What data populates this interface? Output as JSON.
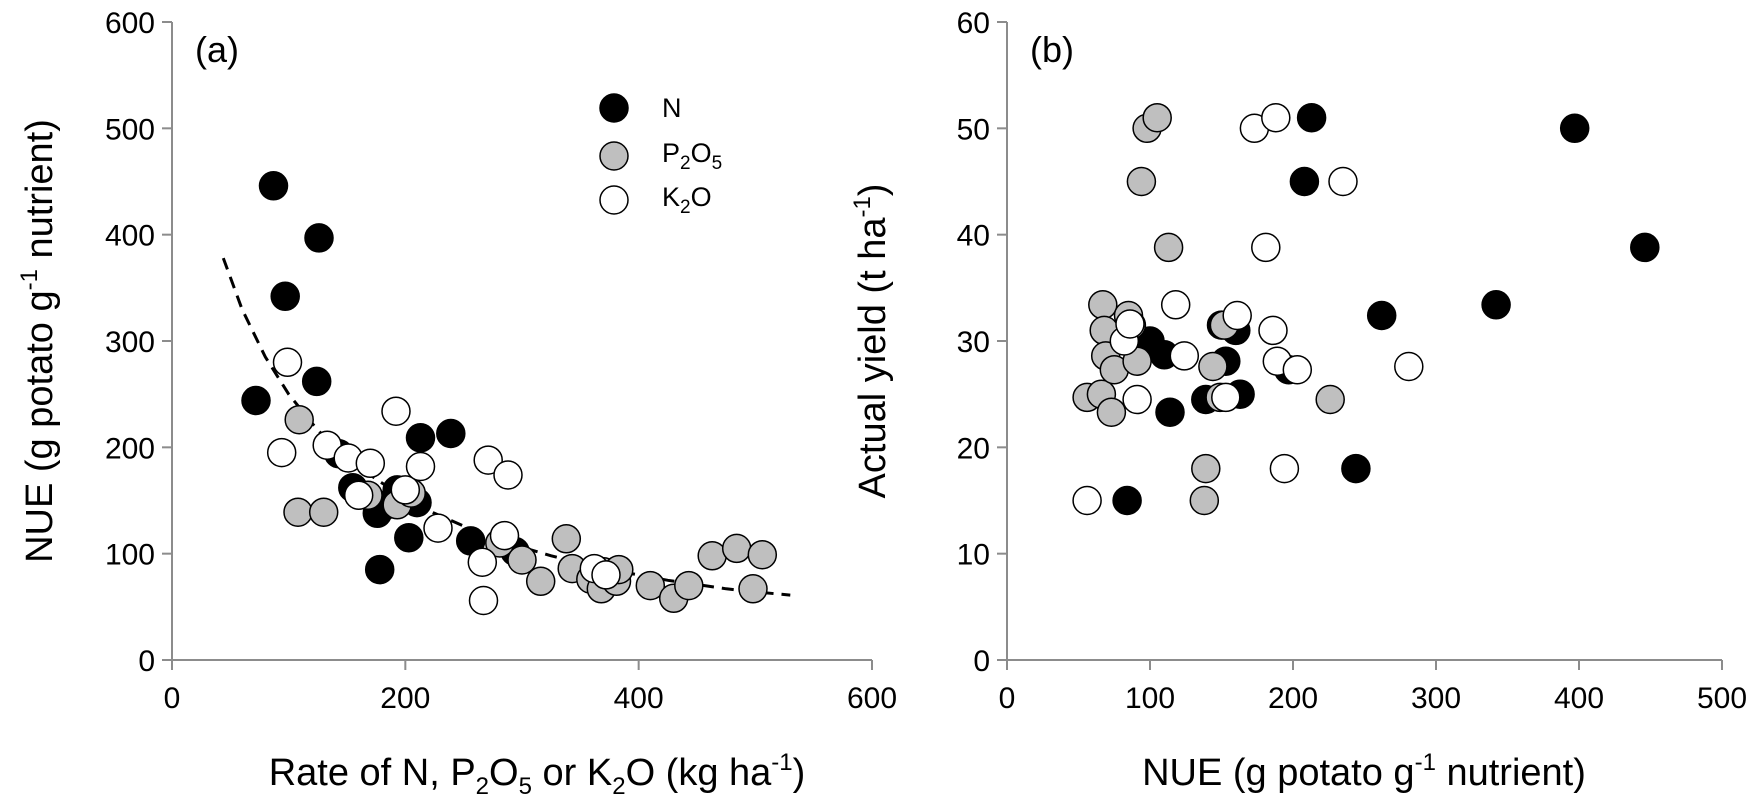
{
  "chart_data": [
    {
      "type": "scatter",
      "panel_label": "(a)",
      "xlabel": {
        "pre": "Rate of N, P",
        "sub1": "2",
        "mid1": "O",
        "sub2": "5",
        "mid2": " or K",
        "sub3": "2",
        "mid3": "O (kg ha",
        "sup": "-1",
        "post": ")"
      },
      "ylabel": {
        "pre": "NUE (g potato g",
        "sup": "-1",
        "post": " nutrient)"
      },
      "xlim": [
        0,
        600
      ],
      "ylim": [
        0,
        600
      ],
      "xticks": [
        "0",
        "200",
        "400",
        "600"
      ],
      "yticks": [
        "0",
        "100",
        "200",
        "300",
        "400",
        "500",
        "600"
      ],
      "legend_position": "top-right",
      "legend": [
        {
          "key": "N",
          "parts": {
            "pre": "N",
            "sub": "",
            "mid": "",
            "sub2": "",
            "post": ""
          },
          "fill": "#000000"
        },
        {
          "key": "P2O5",
          "parts": {
            "pre": "P",
            "sub": "2",
            "mid": "O",
            "sub2": "5",
            "post": ""
          },
          "fill": "#bfbfbf"
        },
        {
          "key": "K2O",
          "parts": {
            "pre": "K",
            "sub": "2",
            "mid": "O",
            "sub2": "",
            "post": ""
          },
          "fill": "#ffffff"
        }
      ],
      "series": [
        {
          "key": "N",
          "fill": "#000000",
          "points": [
            [
              72,
              244
            ],
            [
              87,
              446
            ],
            [
              97,
              342
            ],
            [
              124,
              262
            ],
            [
              126,
              397
            ],
            [
              143,
              194
            ],
            [
              155,
              162
            ],
            [
              176,
              138
            ],
            [
              178,
              85
            ],
            [
              184,
              146
            ],
            [
              193,
              160
            ],
            [
              203,
              115
            ],
            [
              210,
              148
            ],
            [
              213,
              209
            ],
            [
              239,
              213
            ],
            [
              256,
              112
            ],
            [
              294,
              102
            ]
          ]
        },
        {
          "key": "P2O5",
          "fill": "#bfbfbf",
          "points": [
            [
              108,
              139
            ],
            [
              109,
              226
            ],
            [
              130,
              139
            ],
            [
              168,
              155
            ],
            [
              193,
              146
            ],
            [
              205,
              157
            ],
            [
              281,
              110
            ],
            [
              300,
              94
            ],
            [
              316,
              74
            ],
            [
              338,
              114
            ],
            [
              343,
              86
            ],
            [
              359,
              76
            ],
            [
              368,
              67
            ],
            [
              370,
              83
            ],
            [
              381,
              74
            ],
            [
              383,
              85
            ],
            [
              410,
              70
            ],
            [
              430,
              58
            ],
            [
              443,
              70
            ],
            [
              463,
              98
            ],
            [
              484,
              105
            ],
            [
              498,
              67
            ],
            [
              506,
              99
            ]
          ]
        },
        {
          "key": "K2O",
          "fill": "#ffffff",
          "points": [
            [
              94,
              195
            ],
            [
              99,
              280
            ],
            [
              133,
              202
            ],
            [
              151,
              190
            ],
            [
              160,
              155
            ],
            [
              170,
              185
            ],
            [
              192,
              234
            ],
            [
              200,
              160
            ],
            [
              213,
              182
            ],
            [
              228,
              124
            ],
            [
              266,
              92
            ],
            [
              267,
              56
            ],
            [
              271,
              188
            ],
            [
              285,
              117
            ],
            [
              288,
              174
            ],
            [
              362,
              86
            ],
            [
              372,
              80
            ]
          ]
        }
      ],
      "trend": {
        "style": "dashed",
        "points": [
          [
            44,
            378
          ],
          [
            60,
            330
          ],
          [
            80,
            285
          ],
          [
            100,
            250
          ],
          [
            125,
            216
          ],
          [
            150,
            190
          ],
          [
            175,
            170
          ],
          [
            200,
            152
          ],
          [
            225,
            138
          ],
          [
            250,
            126
          ],
          [
            275,
            115
          ],
          [
            300,
            106
          ],
          [
            325,
            98
          ],
          [
            350,
            91
          ],
          [
            375,
            85
          ],
          [
            400,
            80
          ],
          [
            425,
            75
          ],
          [
            450,
            71
          ],
          [
            475,
            67
          ],
          [
            500,
            64
          ],
          [
            530,
            61
          ]
        ]
      }
    },
    {
      "type": "scatter",
      "panel_label": "(b)",
      "xlabel": {
        "pre": "NUE (g potato g",
        "sup": "-1",
        "post": " nutrient)"
      },
      "ylabel": {
        "pre": "Actual yield (t ha",
        "sup": "-1",
        "post": ")"
      },
      "xlim": [
        0,
        500
      ],
      "ylim": [
        0,
        60
      ],
      "xticks": [
        "0",
        "100",
        "200",
        "300",
        "400",
        "500"
      ],
      "yticks": [
        "0",
        "10",
        "20",
        "30",
        "40",
        "50",
        "60"
      ],
      "series": [
        {
          "key": "N",
          "fill": "#000000",
          "points": [
            [
              84,
              15
            ],
            [
              100,
              30
            ],
            [
              110,
              28.7
            ],
            [
              114,
              23.3
            ],
            [
              139,
              24.5
            ],
            [
              150,
              31.5
            ],
            [
              153,
              28.1
            ],
            [
              160,
              31
            ],
            [
              163,
              25
            ],
            [
              197,
              27.3
            ],
            [
              208,
              45
            ],
            [
              213,
              51
            ],
            [
              244,
              18
            ],
            [
              262,
              32.4
            ],
            [
              342,
              33.4
            ],
            [
              397,
              50
            ],
            [
              446,
              38.8
            ]
          ]
        },
        {
          "key": "P2O5",
          "fill": "#bfbfbf",
          "points": [
            [
              56,
              24.7
            ],
            [
              66,
              25
            ],
            [
              67,
              33.4
            ],
            [
              68,
              31
            ],
            [
              69,
              28.6
            ],
            [
              73,
              23.3
            ],
            [
              75,
              27.3
            ],
            [
              85,
              32.4
            ],
            [
              87,
              31.5
            ],
            [
              91,
              28.1
            ],
            [
              94,
              45
            ],
            [
              98,
              50
            ],
            [
              105,
              51
            ],
            [
              113,
              38.8
            ],
            [
              138,
              15
            ],
            [
              139,
              18
            ],
            [
              144,
              27.6
            ],
            [
              149,
              24.7
            ],
            [
              152,
              31.5
            ],
            [
              226,
              24.5
            ]
          ]
        },
        {
          "key": "K2O",
          "fill": "#ffffff",
          "points": [
            [
              56,
              15
            ],
            [
              82,
              30
            ],
            [
              86,
              31.6
            ],
            [
              91,
              24.5
            ],
            [
              118,
              33.4
            ],
            [
              124,
              28.6
            ],
            [
              153,
              24.7
            ],
            [
              161,
              32.4
            ],
            [
              173,
              50
            ],
            [
              181,
              38.8
            ],
            [
              186,
              31
            ],
            [
              188,
              51
            ],
            [
              189,
              28.1
            ],
            [
              194,
              18
            ],
            [
              203,
              27.3
            ],
            [
              235,
              45
            ],
            [
              281,
              27.6
            ]
          ]
        }
      ]
    }
  ]
}
